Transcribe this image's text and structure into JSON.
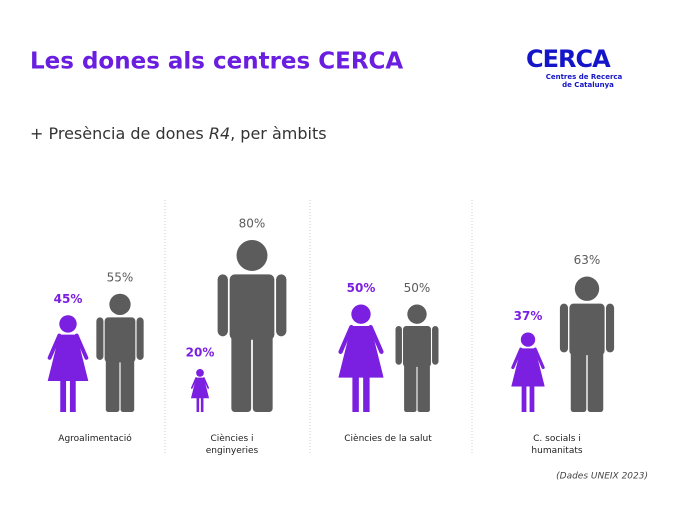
{
  "chart_data": {
    "type": "pictogram",
    "title": "Les dones als centres CERCA",
    "subtitle_parts": [
      "+ Presència de dones ",
      "R4",
      ", per àmbits"
    ],
    "logo": {
      "name": "CERCA",
      "tagline": [
        "Centres de Recerca",
        "de Catalunya"
      ]
    },
    "source": "(Dades UNEIX 2023)",
    "categories": [
      "Agroalimentació",
      "Ciències i enginyeries",
      "Ciències de la salut",
      "C. socials i humanitats"
    ],
    "series": [
      {
        "color": "#7b1fe0",
        "values": [
          45,
          20,
          50,
          37
        ],
        "value_labels": [
          "45%",
          "20%",
          "50%",
          "37%"
        ]
      },
      {
        "color": "#5c5c5c",
        "values": [
          55,
          80,
          50,
          63
        ],
        "value_labels": [
          "55%",
          "80%",
          "50%",
          "63%"
        ]
      }
    ]
  }
}
